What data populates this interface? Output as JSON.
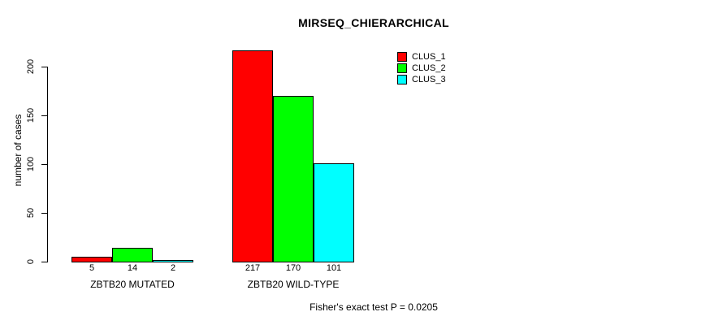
{
  "chart_data": {
    "type": "bar",
    "title": "MIRSEQ_CHIERARCHICAL",
    "ylabel": "number of cases",
    "xlabel": "",
    "categories": [
      "ZBTB20 MUTATED",
      "ZBTB20 WILD-TYPE"
    ],
    "series": [
      {
        "name": "CLUS_1",
        "color": "#ff0000",
        "values": [
          5,
          217
        ]
      },
      {
        "name": "CLUS_2",
        "color": "#00ff00",
        "values": [
          14,
          170
        ]
      },
      {
        "name": "CLUS_3",
        "color": "#00ffff",
        "values": [
          2,
          101
        ]
      }
    ],
    "ylim": [
      0,
      200
    ],
    "yticks": [
      0,
      50,
      100,
      150,
      200
    ],
    "bar_value_labels_shown": true,
    "grid": false,
    "legend_position": "top-right",
    "axis_color": "#000000",
    "background_color": "#ffffff",
    "footnote": "Fisher's exact test P = 0.0205"
  }
}
